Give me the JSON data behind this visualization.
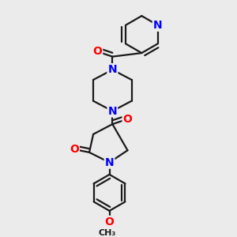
{
  "bg_color": "#ebebeb",
  "atom_colors": {
    "N": "#0000ff",
    "O": "#ff0000",
    "C": "#000000"
  },
  "bond_color": "#1a1a1a",
  "bond_width": 1.6,
  "font_size": 10
}
